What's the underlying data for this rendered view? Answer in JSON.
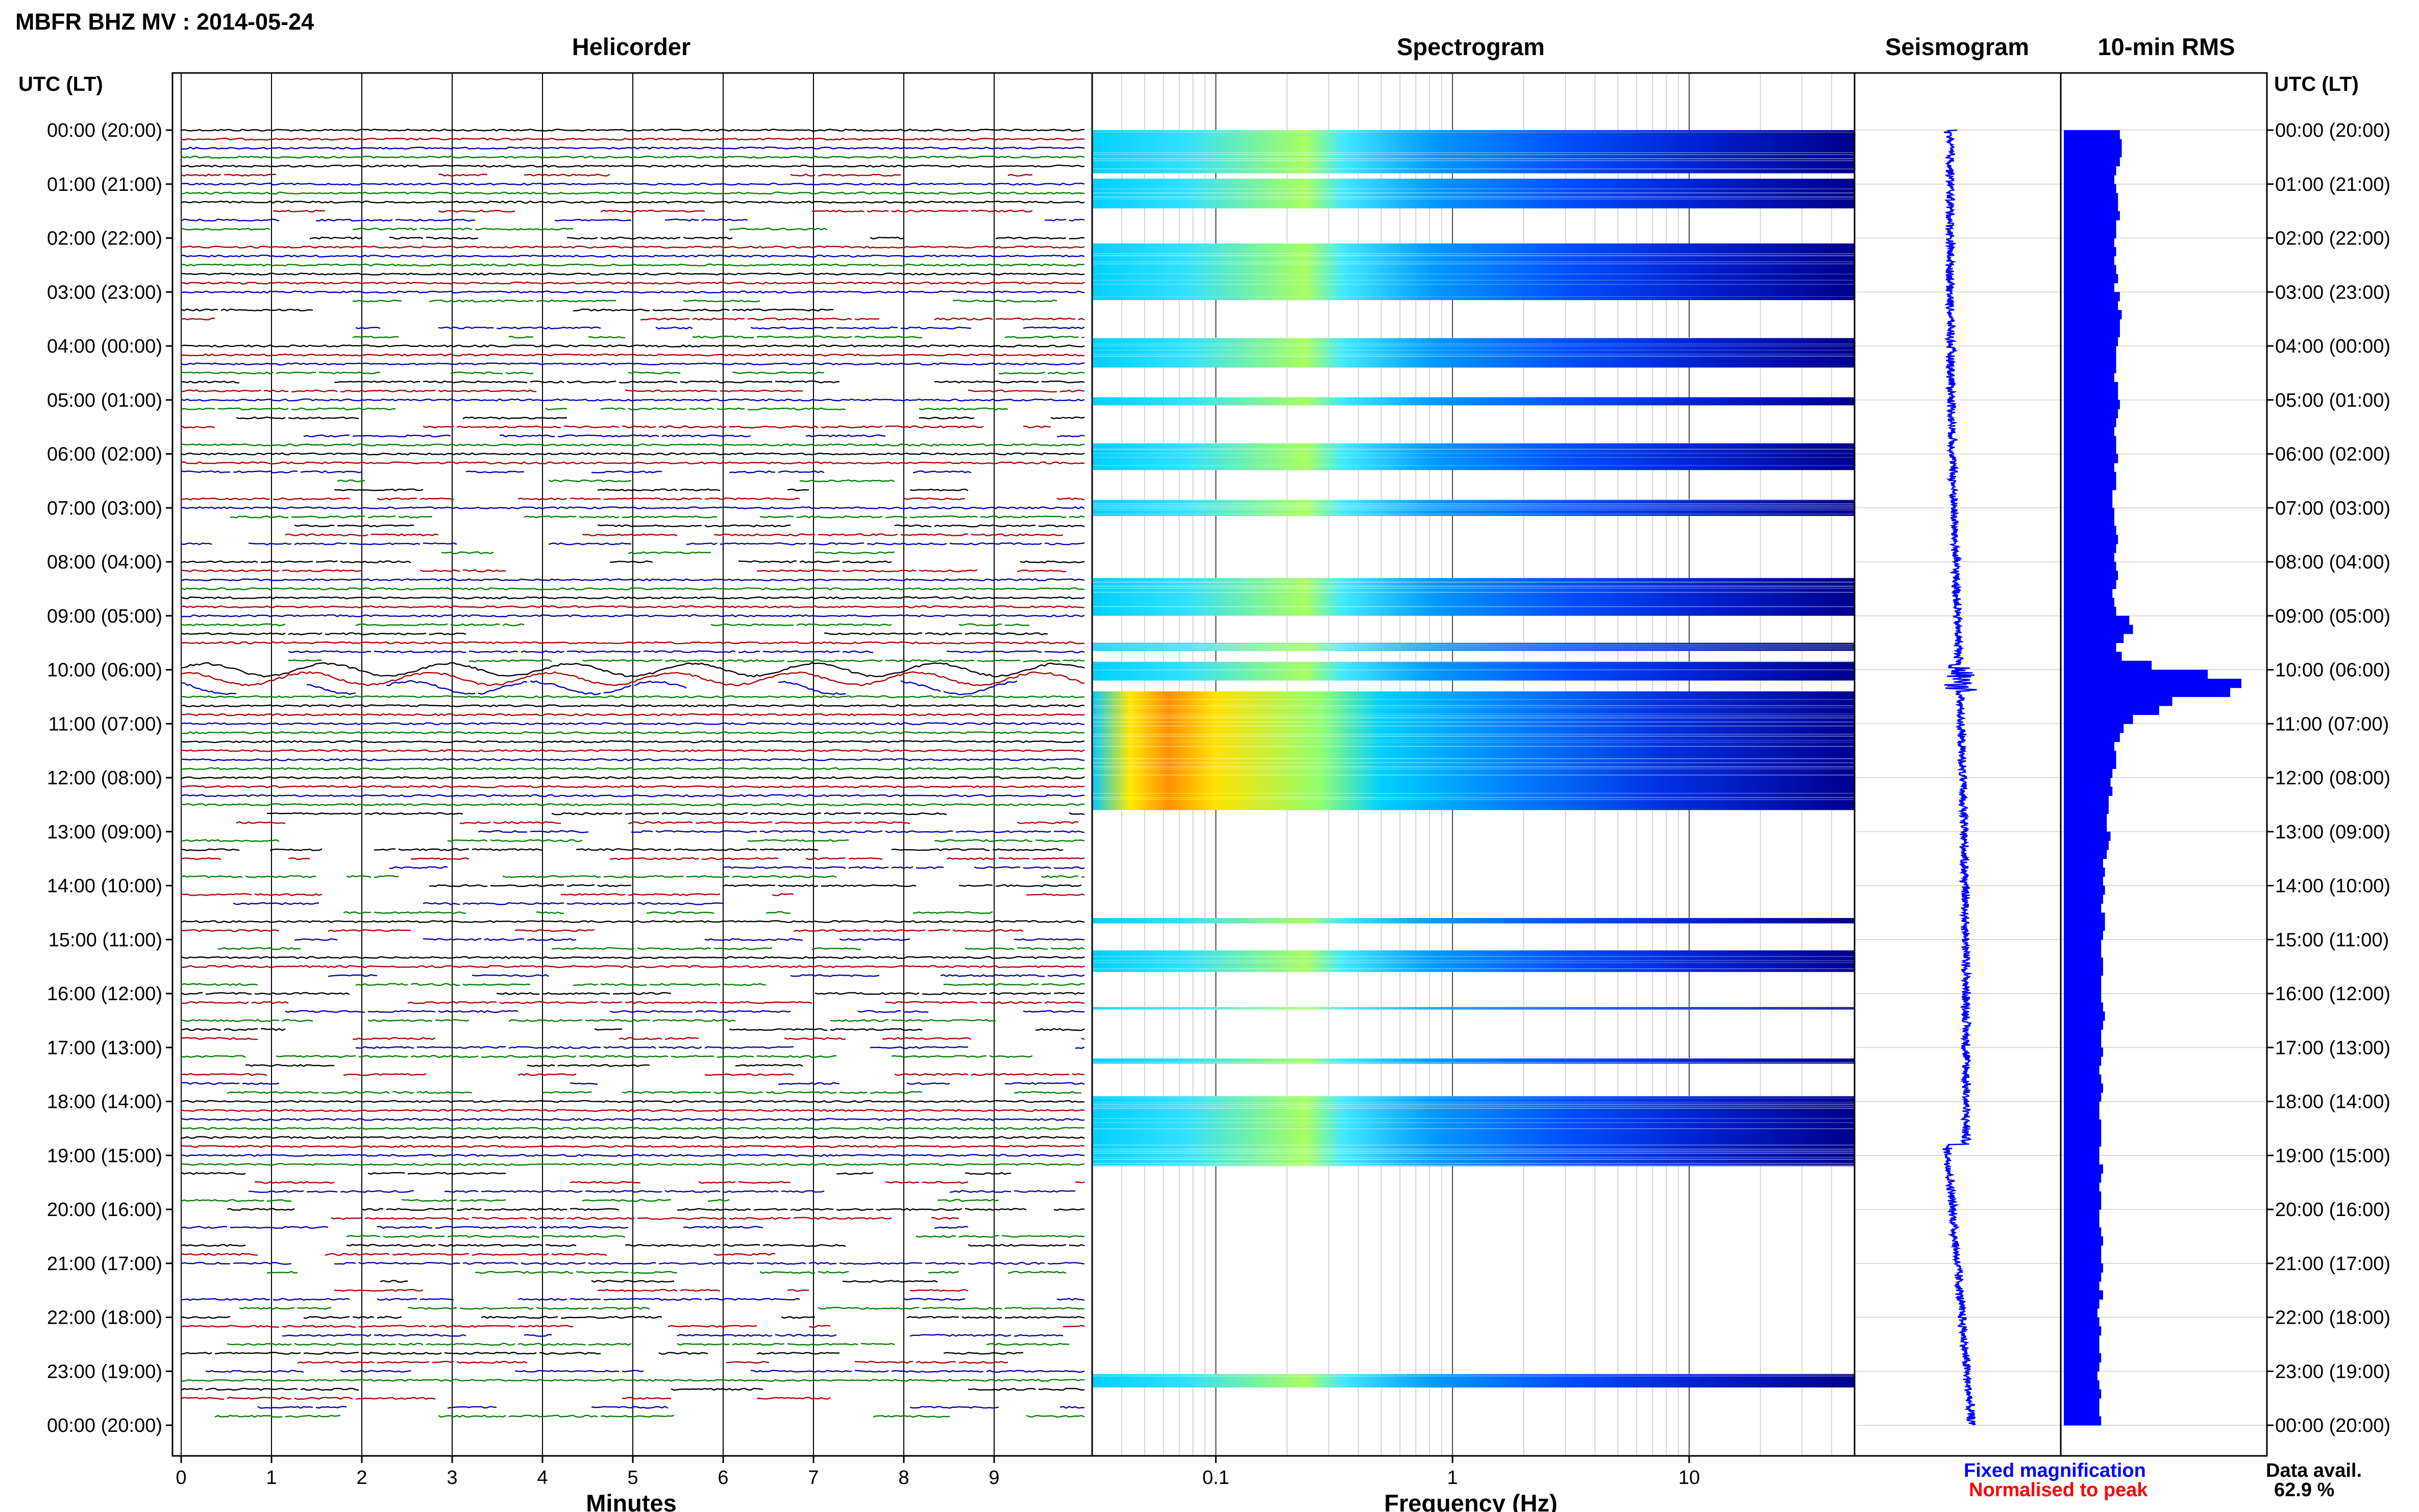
{
  "header": {
    "title": "MBFR BHZ MV : 2014-05-24"
  },
  "panels": {
    "helicorder": "Helicorder",
    "spectrogram": "Spectrogram",
    "seismogram": "Seismogram",
    "rms": "10-min RMS"
  },
  "axes": {
    "left_label": "UTC (LT)",
    "right_label": "UTC (LT)",
    "time_ticks": [
      "00:00 (20:00)",
      "01:00 (21:00)",
      "02:00 (22:00)",
      "03:00 (23:00)",
      "04:00 (00:00)",
      "05:00 (01:00)",
      "06:00 (02:00)",
      "07:00 (03:00)",
      "08:00 (04:00)",
      "09:00 (05:00)",
      "10:00 (06:00)",
      "11:00 (07:00)",
      "12:00 (08:00)",
      "13:00 (09:00)",
      "14:00 (10:00)",
      "15:00 (11:00)",
      "16:00 (12:00)",
      "17:00 (13:00)",
      "18:00 (14:00)",
      "19:00 (15:00)",
      "20:00 (16:00)",
      "21:00 (17:00)",
      "22:00 (18:00)",
      "23:00 (19:00)",
      "00:00 (20:00)"
    ],
    "minutes_label": "Minutes",
    "minutes_ticks": [
      "0",
      "1",
      "2",
      "3",
      "4",
      "5",
      "6",
      "7",
      "8",
      "9"
    ],
    "frequency_label": "Frequency (Hz)",
    "frequency_ticks": [
      "0.1",
      "1",
      "10"
    ]
  },
  "legend": {
    "fixed": "Fixed magnification",
    "normalised": "Normalised to peak",
    "fixed_color": "#0000ff",
    "normalised_color": "#ff0000"
  },
  "availability": {
    "label": "Data avail.",
    "value": "62.9 %"
  },
  "chart_data": [
    {
      "type": "line",
      "panel": "Helicorder",
      "x_unit": "Minutes",
      "xlim": [
        0,
        10
      ],
      "y_unit": "UTC hour",
      "ylim": [
        0,
        24
      ],
      "trace_colors": [
        "#000000",
        "#b00000",
        "#0000c0",
        "#008000"
      ]
    },
    {
      "type": "heatmap",
      "panel": "Spectrogram",
      "x_scale": "log",
      "xlim": [
        0.03,
        50
      ],
      "y_unit": "UTC hour",
      "ylim": [
        0,
        24
      ],
      "data_hours": [
        [
          0,
          0.8
        ],
        [
          0.9,
          1.45
        ],
        [
          2.1,
          3.15
        ],
        [
          3.85,
          4.4
        ],
        [
          4.95,
          5.1
        ],
        [
          5.8,
          6.3
        ],
        [
          6.85,
          7.15
        ],
        [
          8.3,
          9.0
        ],
        [
          9.5,
          9.65
        ],
        [
          9.85,
          10.2
        ],
        [
          10.4,
          12.6
        ],
        [
          14.6,
          14.7
        ],
        [
          15.2,
          15.6
        ],
        [
          16.25,
          16.3
        ],
        [
          17.2,
          17.3
        ],
        [
          17.9,
          19.2
        ],
        [
          23.05,
          23.3
        ]
      ],
      "color_scale": [
        "#00008a",
        "#0000ff",
        "#0090ff",
        "#00e0ff",
        "#a0ff60",
        "#ffff00",
        "#ff8000",
        "#ff2000"
      ]
    },
    {
      "type": "line",
      "panel": "Seismogram",
      "y_unit": "UTC hour",
      "ylim": [
        0,
        24
      ],
      "color": "#0000ff"
    },
    {
      "type": "bar",
      "orientation": "horizontal",
      "panel": "10-min RMS",
      "y_unit": "UTC hour",
      "bin_minutes": 10,
      "ylim": [
        0,
        24
      ],
      "peak_hour": 10.1,
      "color": "#0000ff",
      "values": [
        0.3,
        0.31,
        0.31,
        0.3,
        0.28,
        0.27,
        0.28,
        0.29,
        0.29,
        0.3,
        0.28,
        0.28,
        0.27,
        0.28,
        0.27,
        0.28,
        0.29,
        0.27,
        0.3,
        0.29,
        0.31,
        0.3,
        0.3,
        0.29,
        0.28,
        0.28,
        0.28,
        0.27,
        0.29,
        0.29,
        0.3,
        0.29,
        0.28,
        0.27,
        0.28,
        0.28,
        0.29,
        0.27,
        0.28,
        0.28,
        0.26,
        0.26,
        0.27,
        0.27,
        0.28,
        0.29,
        0.28,
        0.27,
        0.28,
        0.29,
        0.28,
        0.26,
        0.27,
        0.28,
        0.35,
        0.37,
        0.32,
        0.28,
        0.31,
        0.47,
        0.77,
        0.95,
        0.89,
        0.58,
        0.51,
        0.37,
        0.32,
        0.3,
        0.27,
        0.28,
        0.28,
        0.26,
        0.25,
        0.26,
        0.24,
        0.24,
        0.23,
        0.23,
        0.25,
        0.24,
        0.23,
        0.21,
        0.22,
        0.21,
        0.22,
        0.21,
        0.2,
        0.22,
        0.22,
        0.21,
        0.2,
        0.2,
        0.21,
        0.21,
        0.2,
        0.2,
        0.2,
        0.21,
        0.22,
        0.21,
        0.2,
        0.2,
        0.21,
        0.2,
        0.19,
        0.2,
        0.21,
        0.2,
        0.19,
        0.19,
        0.2,
        0.2,
        0.2,
        0.19,
        0.19,
        0.21,
        0.2,
        0.19,
        0.2,
        0.2,
        0.19,
        0.19,
        0.2,
        0.21,
        0.2,
        0.2,
        0.21,
        0.2,
        0.19,
        0.21,
        0.19,
        0.18,
        0.19,
        0.2,
        0.19,
        0.19,
        0.2,
        0.19,
        0.18,
        0.19,
        0.2,
        0.19,
        0.19,
        0.2
      ]
    }
  ]
}
